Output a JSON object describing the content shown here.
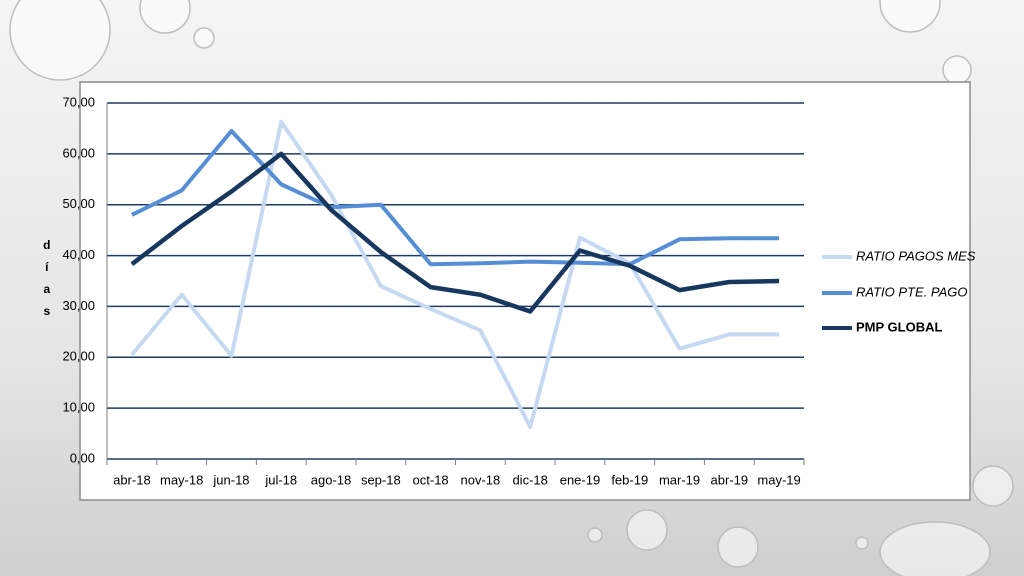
{
  "chart_data": {
    "type": "line",
    "ylabel": "días",
    "categories": [
      "abr-18",
      "may-18",
      "jun-18",
      "jul-18",
      "ago-18",
      "sep-18",
      "oct-18",
      "nov-18",
      "dic-18",
      "ene-19",
      "feb-19",
      "mar-19",
      "abr-19",
      "may-19"
    ],
    "series": [
      {
        "name": "RATIO PAGOS MES",
        "color": "#c6d9f1",
        "values": [
          20.5,
          32.3,
          20.3,
          66.3,
          52,
          34,
          29.5,
          25.3,
          6.3,
          43.5,
          38.5,
          21.7,
          24.5,
          24.5
        ]
      },
      {
        "name": "RATIO PTE. PAGO",
        "color": "#558ed5",
        "values": [
          48,
          52.8,
          64.5,
          54,
          49.5,
          50,
          38.3,
          38.5,
          38.8,
          38.6,
          38.3,
          43.2,
          43.4,
          43.4
        ]
      },
      {
        "name": "PMP GLOBAL",
        "color": "#17375e",
        "values": [
          38.3,
          45.8,
          52.6,
          60,
          49,
          40.7,
          33.8,
          32.3,
          29,
          41,
          38,
          33.2,
          34.8,
          35
        ]
      }
    ],
    "ylim": [
      0,
      70
    ],
    "yticks": [
      {
        "value": 0,
        "label": "0,00"
      },
      {
        "value": 10,
        "label": "10,00"
      },
      {
        "value": 20,
        "label": "20,00"
      },
      {
        "value": 30,
        "label": "30,00"
      },
      {
        "value": 40,
        "label": "40,00"
      },
      {
        "value": 50,
        "label": "50,00"
      },
      {
        "value": 60,
        "label": "60,00"
      },
      {
        "value": 70,
        "label": "70,00"
      }
    ],
    "grid": true,
    "legend": "right"
  }
}
